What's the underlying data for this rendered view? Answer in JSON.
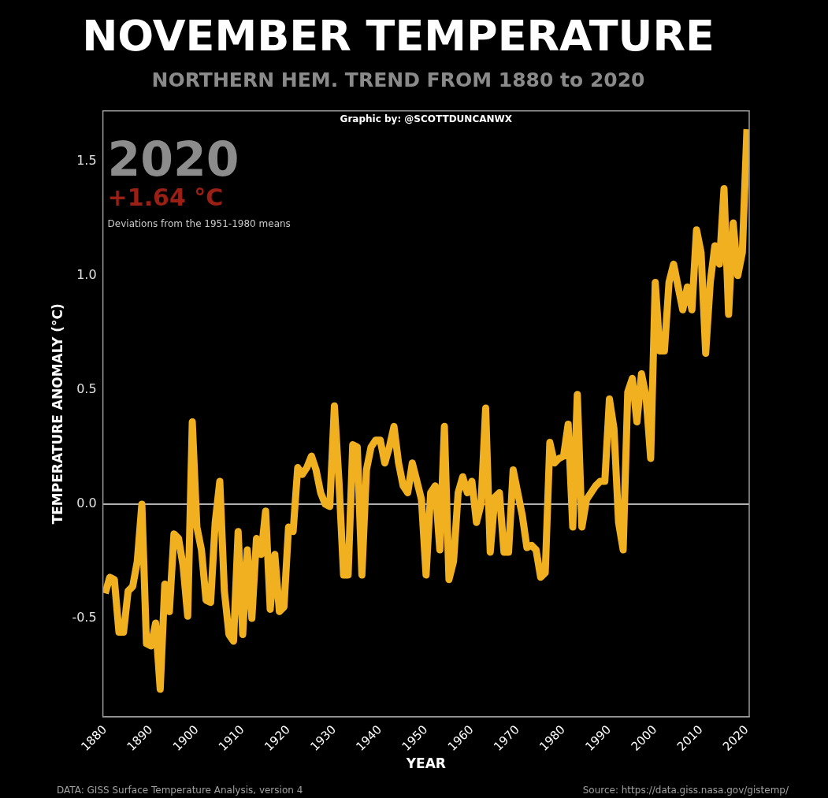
{
  "chart_data": {
    "type": "line",
    "title": "NOVEMBER TEMPERATURE",
    "subtitle": "NORTHERN HEM. TREND FROM 1880 to 2020",
    "xlabel": "YEAR",
    "ylabel": "TEMPERATURE ANOMALY (°C)",
    "annotations": [
      "Graphic by: @SCOTTDUNCANWX",
      "2020",
      "+1.64 °C",
      "Deviations from the 1951-1980 means",
      "DATA: GISS Surface Temperature Analysis, version 4",
      "Source: https://data.giss.nasa.gov/gistemp/"
    ],
    "x": [
      1880,
      1881,
      1882,
      1883,
      1884,
      1885,
      1886,
      1887,
      1888,
      1889,
      1890,
      1891,
      1892,
      1893,
      1894,
      1895,
      1896,
      1897,
      1898,
      1899,
      1900,
      1901,
      1902,
      1903,
      1904,
      1905,
      1906,
      1907,
      1908,
      1909,
      1910,
      1911,
      1912,
      1913,
      1914,
      1915,
      1916,
      1917,
      1918,
      1919,
      1920,
      1921,
      1922,
      1923,
      1924,
      1925,
      1926,
      1927,
      1928,
      1929,
      1930,
      1931,
      1932,
      1933,
      1934,
      1935,
      1936,
      1937,
      1938,
      1939,
      1940,
      1941,
      1942,
      1943,
      1944,
      1945,
      1946,
      1947,
      1948,
      1949,
      1950,
      1951,
      1952,
      1953,
      1954,
      1955,
      1956,
      1957,
      1958,
      1959,
      1960,
      1961,
      1962,
      1963,
      1964,
      1965,
      1966,
      1967,
      1968,
      1969,
      1970,
      1971,
      1972,
      1973,
      1974,
      1975,
      1976,
      1977,
      1978,
      1979,
      1980,
      1981,
      1982,
      1983,
      1984,
      1985,
      1986,
      1987,
      1988,
      1989,
      1990,
      1991,
      1992,
      1993,
      1994,
      1995,
      1996,
      1997,
      1998,
      1999,
      2000,
      2001,
      2002,
      2003,
      2004,
      2005,
      2006,
      2007,
      2008,
      2009,
      2010,
      2011,
      2012,
      2013,
      2014,
      2015,
      2016,
      2017,
      2018,
      2019,
      2020
    ],
    "values": [
      -0.39,
      -0.32,
      -0.33,
      -0.56,
      -0.56,
      -0.38,
      -0.36,
      -0.25,
      0.0,
      -0.61,
      -0.62,
      -0.52,
      -0.81,
      -0.35,
      -0.47,
      -0.13,
      -0.15,
      -0.27,
      -0.49,
      0.36,
      -0.1,
      -0.2,
      -0.42,
      -0.43,
      -0.08,
      0.1,
      -0.38,
      -0.57,
      -0.6,
      -0.12,
      -0.57,
      -0.2,
      -0.5,
      -0.15,
      -0.22,
      -0.03,
      -0.46,
      -0.22,
      -0.47,
      -0.45,
      -0.1,
      -0.12,
      0.16,
      0.13,
      0.16,
      0.21,
      0.15,
      0.05,
      0.0,
      -0.01,
      0.43,
      0.1,
      -0.31,
      -0.31,
      0.26,
      0.25,
      -0.31,
      0.15,
      0.25,
      0.28,
      0.28,
      0.18,
      0.25,
      0.34,
      0.18,
      0.08,
      0.05,
      0.18,
      0.1,
      0.02,
      -0.31,
      0.05,
      0.08,
      -0.2,
      0.34,
      -0.33,
      -0.25,
      0.05,
      0.12,
      0.05,
      0.1,
      -0.08,
      0.0,
      0.42,
      -0.21,
      0.03,
      0.05,
      -0.21,
      -0.21,
      0.15,
      0.05,
      -0.05,
      -0.19,
      -0.18,
      -0.2,
      -0.32,
      -0.3,
      0.27,
      0.18,
      0.2,
      0.21,
      0.35,
      -0.1,
      0.48,
      -0.1,
      0.02,
      0.05,
      0.08,
      0.1,
      0.1,
      0.46,
      0.33,
      -0.08,
      -0.2,
      0.49,
      0.55,
      0.36,
      0.57,
      0.47,
      0.2,
      0.97,
      0.67,
      0.67,
      0.97,
      1.05,
      0.95,
      0.85,
      0.95,
      0.85,
      1.2,
      1.1,
      0.66,
      0.97,
      1.13,
      1.05,
      1.38,
      0.83,
      1.23,
      1.0,
      1.1,
      1.64
    ],
    "xlim": [
      1879.5,
      2020.5
    ],
    "xticks": [
      1880,
      1890,
      1900,
      1910,
      1920,
      1930,
      1940,
      1950,
      1960,
      1970,
      1980,
      1990,
      2000,
      2010,
      2020
    ],
    "ylim": [
      -0.93,
      1.72
    ],
    "yticks": [
      -0.5,
      {
        "value": 0,
        "label": "0.0"
      },
      0.5,
      {
        "value": 1,
        "label": "1.0"
      },
      1.5
    ],
    "color": "#f0b020",
    "ref_lines": [
      {
        "axis": "y",
        "value": 0,
        "color": "#b0b0b0"
      }
    ],
    "grid": false,
    "legend": false
  }
}
